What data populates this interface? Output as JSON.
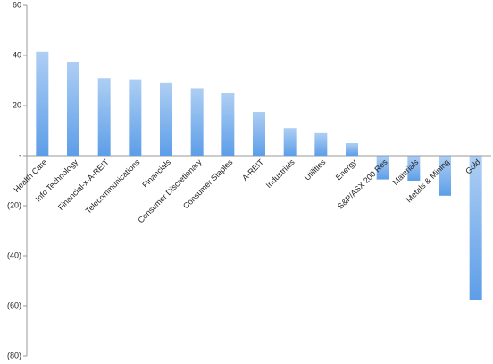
{
  "chart_data": {
    "type": "bar",
    "categories": [
      "Health Care",
      "Info Technology",
      "Financial-x-A-REIT",
      "Telecommunications",
      "Financials",
      "Consumer Discretionary",
      "Consumer Staples",
      "A-REIT",
      "Industrials",
      "Utilities",
      "Energy",
      "S&P/ASX 200 Res",
      "Materials",
      "Metals & Mining",
      "Gold"
    ],
    "values": [
      41.5,
      37.5,
      31,
      30.5,
      29,
      27,
      25,
      17.5,
      11,
      9,
      5,
      -9.5,
      -10,
      -16,
      -57.5
    ],
    "color": "#5d9ee8",
    "ylim": [
      -80,
      60
    ],
    "yticks": [
      60,
      40,
      20,
      {
        "value": 0,
        "label": "-"
      },
      {
        "value": -20,
        "label": "(20)"
      },
      {
        "value": -40,
        "label": "(40)"
      },
      {
        "value": -60,
        "label": "(60)"
      },
      {
        "value": -80,
        "label": "(80)"
      }
    ],
    "grid": false
  }
}
